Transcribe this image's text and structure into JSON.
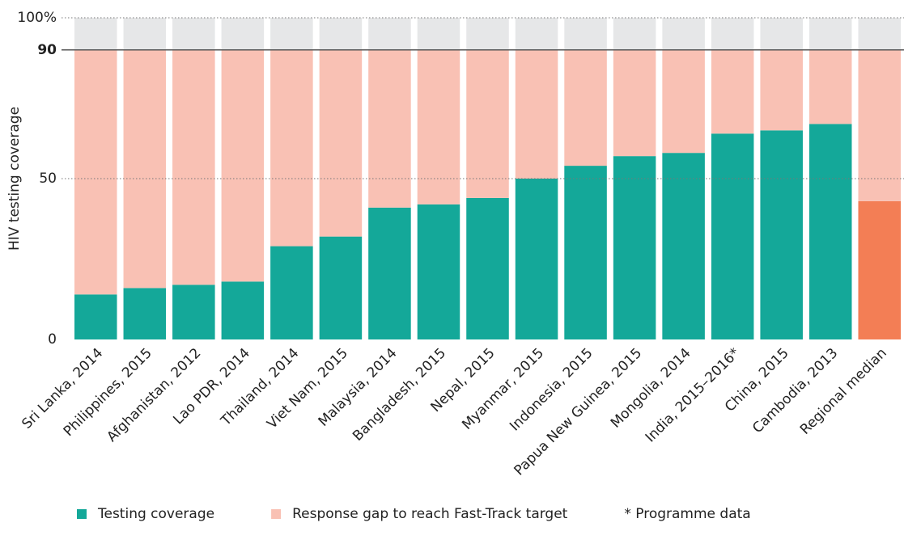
{
  "chart_data": {
    "type": "stacked_bar",
    "y_label": "HIV testing coverage",
    "categories": [
      "Sri Lanka, 2014",
      "Philippines, 2015",
      "Afghanistan, 2012",
      "Lao PDR, 2014",
      "Thailand, 2014",
      "Viet Nam, 2015",
      "Malaysia, 2014",
      "Bangladesh, 2015",
      "Nepal, 2015",
      "Myanmar, 2015",
      "Indonesia, 2015",
      "Papua New Guinea, 2015",
      "Mongolia, 2014",
      "India, 2015–2016*",
      "China, 2015",
      "Cambodia, 2013",
      "Regional median"
    ],
    "series": [
      {
        "name": "Testing coverage",
        "color": "#14a899",
        "colors": [
          "#14a899",
          "#14a899",
          "#14a899",
          "#14a899",
          "#14a899",
          "#14a899",
          "#14a899",
          "#14a899",
          "#14a899",
          "#14a899",
          "#14a899",
          "#14a899",
          "#14a899",
          "#14a899",
          "#14a899",
          "#14a899",
          "#f37e55"
        ],
        "values": [
          14,
          16,
          17,
          18,
          29,
          32,
          41,
          42,
          44,
          50,
          54,
          57,
          58,
          64,
          65,
          67,
          43
        ],
        "show_labels": true
      },
      {
        "name": "Response gap to reach Fast-Track target",
        "color": "#f9c1b4",
        "values": [
          76,
          74,
          73,
          72,
          61,
          58,
          49,
          48,
          46,
          40,
          36,
          33,
          32,
          26,
          25,
          23,
          47
        ]
      },
      {
        "color": "#e6e7e8",
        "values": [
          10,
          10,
          10,
          10,
          10,
          10,
          10,
          10,
          10,
          10,
          10,
          10,
          10,
          10,
          10,
          10,
          10
        ]
      }
    ],
    "note": "* Programme data",
    "ylim": [
      0,
      100
    ],
    "yticks": [
      0,
      50,
      90,
      {
        "value": 100,
        "label": "100%"
      }
    ],
    "target_line": 90,
    "grid": true
  }
}
